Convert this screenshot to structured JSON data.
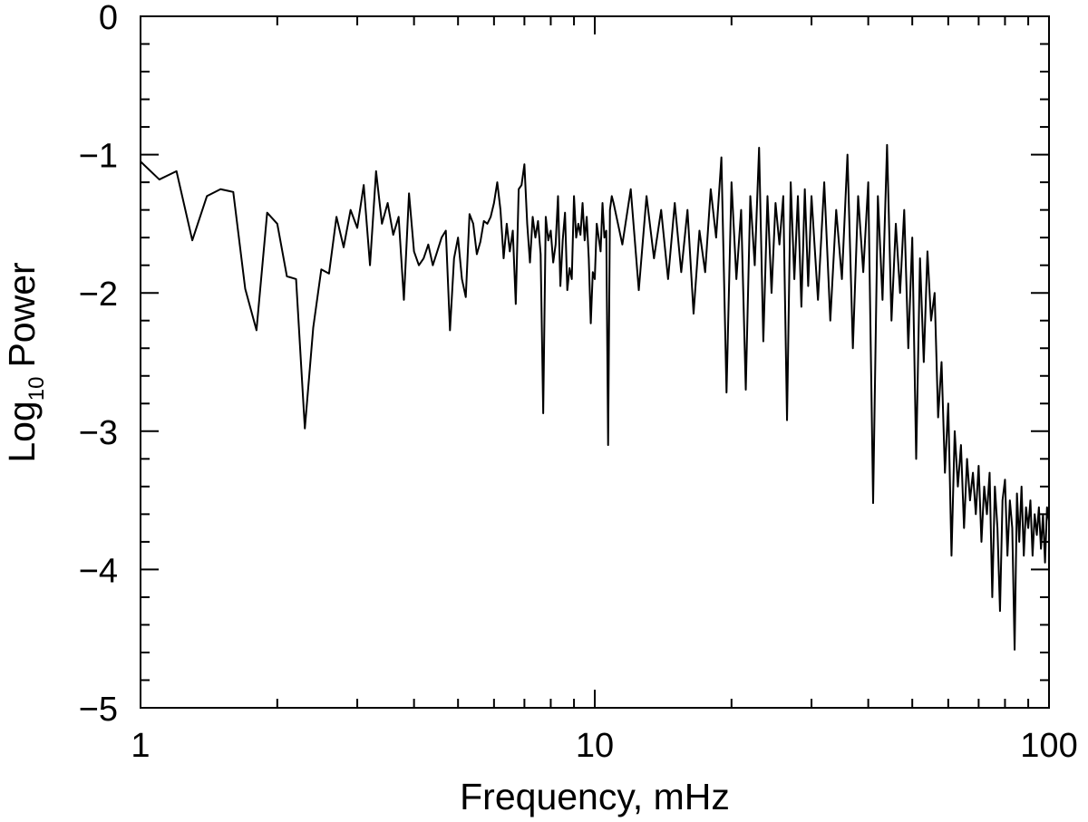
{
  "chart_data": {
    "type": "line",
    "xlabel": "Frequency, mHz",
    "ylabel": [
      "Log",
      "10",
      "Power"
    ],
    "xlog": true,
    "xlim": [
      1,
      100
    ],
    "xticks": [
      1,
      10,
      100
    ],
    "xminor": [
      2,
      3,
      4,
      5,
      6,
      7,
      8,
      9,
      20,
      30,
      40,
      50,
      60,
      70,
      80,
      90
    ],
    "ylim": [
      -5,
      0
    ],
    "yticks": [
      {
        "value": 0,
        "label": "0"
      },
      {
        "value": -1,
        "label": "−1"
      },
      {
        "value": -2,
        "label": "−2"
      },
      {
        "value": -3,
        "label": "−3"
      },
      {
        "value": -4,
        "label": "−4"
      },
      {
        "value": -5,
        "label": "−5"
      }
    ],
    "yminor": [
      -0.2,
      -0.4,
      -0.6,
      -0.8,
      -1.2,
      -1.4,
      -1.6,
      -1.8,
      -2.2,
      -2.4,
      -2.6,
      -2.8,
      -3.2,
      -3.4,
      -3.6,
      -3.8,
      -4.2,
      -4.4,
      -4.6,
      -4.8
    ],
    "color": "#000000",
    "x": [
      1,
      1.1,
      1.2,
      1.3,
      1.4,
      1.5,
      1.6,
      1.7,
      1.8,
      1.9,
      2,
      2.1,
      2.2,
      2.3,
      2.4,
      2.5,
      2.6,
      2.7,
      2.8,
      2.9,
      3,
      3.1,
      3.2,
      3.3,
      3.4,
      3.5,
      3.6,
      3.7,
      3.8,
      3.9,
      4,
      4.1,
      4.2,
      4.3,
      4.4,
      4.5,
      4.6,
      4.7,
      4.8,
      4.9,
      5,
      5.1,
      5.2,
      5.3,
      5.4,
      5.5,
      5.6,
      5.7,
      5.8,
      5.9,
      6,
      6.1,
      6.2,
      6.3,
      6.4,
      6.5,
      6.6,
      6.7,
      6.8,
      6.9,
      7,
      7.1,
      7.2,
      7.3,
      7.4,
      7.5,
      7.6,
      7.7,
      7.8,
      7.9,
      8,
      8.1,
      8.2,
      8.3,
      8.4,
      8.5,
      8.6,
      8.7,
      8.8,
      8.9,
      9,
      9.1,
      9.2,
      9.3,
      9.4,
      9.5,
      9.6,
      9.7,
      9.8,
      9.9,
      10,
      10.1,
      10.2,
      10.3,
      10.4,
      10.5,
      10.6,
      10.7,
      10.8,
      10.9,
      11,
      11.5,
      12,
      12.5,
      13,
      13.5,
      14,
      14.5,
      15,
      15.5,
      16,
      16.5,
      17,
      17.5,
      18,
      18.5,
      19,
      19.5,
      20,
      20.5,
      21,
      21.5,
      22,
      22.5,
      23,
      23.5,
      24,
      24.5,
      25,
      25.5,
      26,
      26.5,
      27,
      27.5,
      28,
      28.5,
      29,
      29.5,
      30,
      31,
      32,
      33,
      34,
      35,
      36,
      37,
      38,
      39,
      40,
      41,
      42,
      43,
      44,
      45,
      46,
      47,
      48,
      49,
      50,
      51,
      52,
      53,
      54,
      55,
      56,
      57,
      58,
      59,
      60,
      61,
      62,
      63,
      64,
      65,
      66,
      67,
      68,
      69,
      70,
      71,
      72,
      73,
      74,
      75,
      76,
      77,
      78,
      79,
      80,
      81,
      82,
      83,
      84,
      85,
      86,
      87,
      88,
      89,
      90,
      91,
      92,
      93,
      94,
      95,
      96,
      97,
      98,
      99,
      100
    ],
    "values": [
      -1.05,
      -1.18,
      -1.12,
      -1.62,
      -1.3,
      -1.25,
      -1.27,
      -1.97,
      -2.27,
      -1.42,
      -1.5,
      -1.88,
      -1.9,
      -2.98,
      -2.25,
      -1.83,
      -1.86,
      -1.45,
      -1.67,
      -1.4,
      -1.53,
      -1.22,
      -1.8,
      -1.12,
      -1.5,
      -1.35,
      -1.58,
      -1.45,
      -2.05,
      -1.28,
      -1.7,
      -1.8,
      -1.75,
      -1.65,
      -1.8,
      -1.7,
      -1.6,
      -1.55,
      -2.27,
      -1.75,
      -1.6,
      -1.9,
      -2.03,
      -1.43,
      -1.5,
      -1.72,
      -1.63,
      -1.48,
      -1.5,
      -1.45,
      -1.35,
      -1.2,
      -1.4,
      -1.75,
      -1.5,
      -1.7,
      -1.55,
      -2.08,
      -1.25,
      -1.22,
      -1.07,
      -1.5,
      -1.78,
      -1.45,
      -1.6,
      -1.48,
      -1.72,
      -2.87,
      -1.45,
      -1.62,
      -1.55,
      -1.78,
      -1.65,
      -1.3,
      -1.95,
      -1.62,
      -1.42,
      -1.98,
      -1.82,
      -1.9,
      -1.3,
      -1.6,
      -1.5,
      -1.58,
      -1.35,
      -1.62,
      -1.45,
      -1.75,
      -2.22,
      -1.85,
      -1.9,
      -1.5,
      -1.6,
      -1.7,
      -1.35,
      -1.6,
      -1.55,
      -3.1,
      -1.4,
      -1.3,
      -1.35,
      -1.65,
      -1.25,
      -1.98,
      -1.3,
      -1.75,
      -1.4,
      -1.9,
      -1.35,
      -1.85,
      -1.4,
      -2.15,
      -1.55,
      -1.85,
      -1.25,
      -1.6,
      -1.02,
      -2.72,
      -1.2,
      -1.9,
      -1.4,
      -2.7,
      -1.3,
      -1.8,
      -0.95,
      -2.35,
      -1.3,
      -2.0,
      -1.35,
      -1.65,
      -1.3,
      -2.92,
      -1.2,
      -1.9,
      -1.3,
      -2.1,
      -1.25,
      -1.95,
      -1.3,
      -2.05,
      -1.2,
      -2.2,
      -1.4,
      -1.9,
      -1.0,
      -2.4,
      -1.3,
      -1.85,
      -1.2,
      -3.52,
      -1.3,
      -2.05,
      -0.93,
      -2.2,
      -1.5,
      -2.0,
      -1.4,
      -2.4,
      -1.6,
      -3.2,
      -1.75,
      -2.5,
      -1.7,
      -2.2,
      -2.0,
      -2.9,
      -2.5,
      -3.3,
      -2.8,
      -3.9,
      -3.0,
      -3.4,
      -3.1,
      -3.7,
      -3.2,
      -3.5,
      -3.3,
      -3.6,
      -3.25,
      -3.8,
      -3.4,
      -3.6,
      -3.3,
      -4.2,
      -3.4,
      -3.7,
      -4.3,
      -3.5,
      -3.35,
      -3.9,
      -3.5,
      -3.7,
      -4.58,
      -3.45,
      -3.8,
      -3.4,
      -3.9,
      -3.55,
      -3.7,
      -3.5,
      -3.9,
      -3.6,
      -3.75,
      -3.55,
      -3.85,
      -3.6,
      -3.95,
      -3.55,
      -3.65
    ]
  }
}
